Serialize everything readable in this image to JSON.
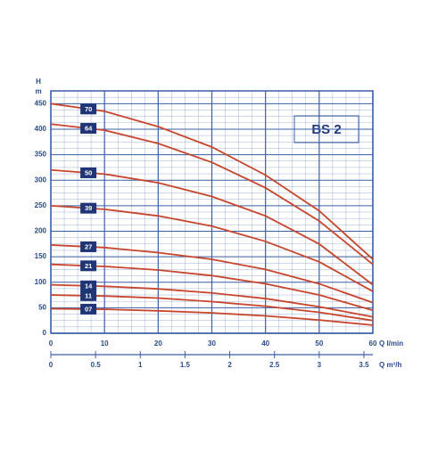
{
  "chart_data": {
    "type": "line",
    "title": "BS 2",
    "y_label": "H",
    "y_unit": "m",
    "x_label": "Q l/min",
    "x2_label": "Q m³/h",
    "x": [
      0,
      10,
      20,
      30,
      40,
      50,
      60
    ],
    "series": [
      {
        "name": "70",
        "values": [
          450,
          435,
          405,
          365,
          310,
          240,
          145
        ]
      },
      {
        "name": "64",
        "values": [
          410,
          398,
          372,
          335,
          285,
          220,
          135
        ]
      },
      {
        "name": "50",
        "values": [
          320,
          312,
          295,
          268,
          230,
          175,
          95
        ]
      },
      {
        "name": "39",
        "values": [
          250,
          243,
          230,
          210,
          180,
          140,
          82
        ]
      },
      {
        "name": "27",
        "values": [
          173,
          168,
          158,
          145,
          125,
          97,
          60
        ]
      },
      {
        "name": "21",
        "values": [
          135,
          131,
          124,
          113,
          97,
          75,
          45
        ]
      },
      {
        "name": "14",
        "values": [
          95,
          92,
          87,
          79,
          68,
          52,
          32
        ]
      },
      {
        "name": "11",
        "values": [
          75,
          73,
          69,
          62,
          53,
          41,
          25
        ]
      },
      {
        "name": "07",
        "values": [
          48,
          47,
          44,
          40,
          34,
          26,
          16
        ]
      }
    ],
    "color": "#c7452c",
    "grid_color": "#3b5fa6",
    "label_color": "#1f3577",
    "xlim": [
      0,
      60
    ],
    "xticks": [
      0,
      10,
      20,
      30,
      40,
      50,
      60
    ],
    "x2lim": [
      0,
      3.6
    ],
    "x2ticks": [
      0,
      0.5,
      1,
      1.5,
      2,
      2.5,
      3,
      3.5
    ],
    "ylim": [
      0,
      475
    ],
    "yticks": [
      0,
      50,
      100,
      150,
      200,
      250,
      300,
      350,
      400,
      450
    ],
    "grid": true
  }
}
